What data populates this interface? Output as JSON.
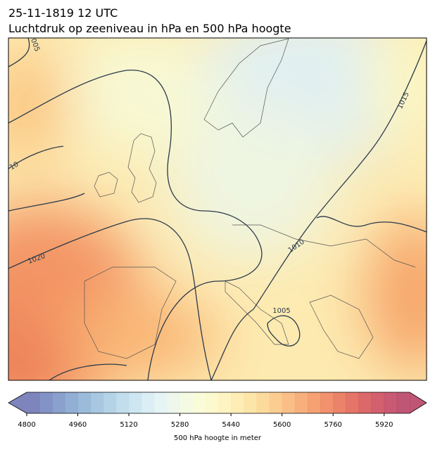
{
  "header": {
    "title": "25-11-1819 12 UTC",
    "subtitle": "Luchtdruk op zeeniveau in hPa en 500 hPa hoogte"
  },
  "map": {
    "isobar_labels": [
      "005",
      "10",
      "1020",
      "1015",
      "1010",
      "1005"
    ]
  },
  "colorbar": {
    "label": "500 hPa hoogte in meter",
    "lim": [
      4800,
      6000
    ],
    "ticks": [
      4800,
      4960,
      5120,
      5280,
      5440,
      5600,
      5760,
      5920
    ],
    "colors": [
      "#6670b0",
      "#6d80bb",
      "#7590c4",
      "#7fa0cc",
      "#8aafd3",
      "#98bedb",
      "#a7cbe2",
      "#b7d7e9",
      "#c6e2ef",
      "#d5ebf3",
      "#e2f2f3",
      "#ecf6ea",
      "#f3f9de",
      "#f8fad2",
      "#fcf8c6",
      "#fef2b8",
      "#feeaa8",
      "#fde09a",
      "#fcd38c",
      "#fbc47e",
      "#f9b372",
      "#f6a266",
      "#f3905c",
      "#ee7e55",
      "#e86d50",
      "#e05d4e",
      "#d64f50",
      "#cb4455",
      "#c03d5a",
      "#b5385e"
    ]
  }
}
